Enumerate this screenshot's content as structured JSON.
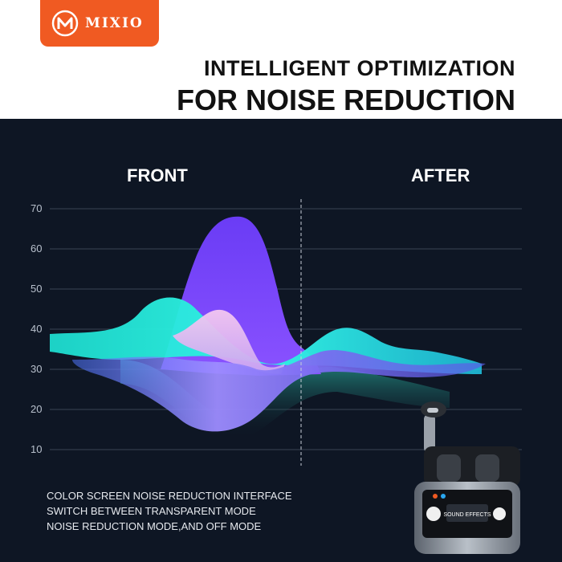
{
  "brand": {
    "name": "MIXIO",
    "color": "#f05a22"
  },
  "headline": {
    "line1": "INTELLIGENT OPTIMIZATION",
    "line2": "FOR NOISE REDUCTION"
  },
  "labels": {
    "front": "FRONT",
    "after": "AFTER"
  },
  "chart_data": {
    "type": "area",
    "y_ticks": [
      "70",
      "60",
      "50",
      "40",
      "30",
      "20",
      "10"
    ],
    "ylim": [
      10,
      70
    ],
    "grid": true,
    "divider": "dashed vertical line between FRONT and AFTER"
  },
  "caption": {
    "line1": "COLOR SCREEN NOISE REDUCTION INTERFACE",
    "line2": "SWITCH BETWEEN TRANSPARENT MODE",
    "line3": "NOISE REDUCTION MODE,AND OFF MODE"
  },
  "device_screen": {
    "text": "SOUND EFFECTS"
  }
}
